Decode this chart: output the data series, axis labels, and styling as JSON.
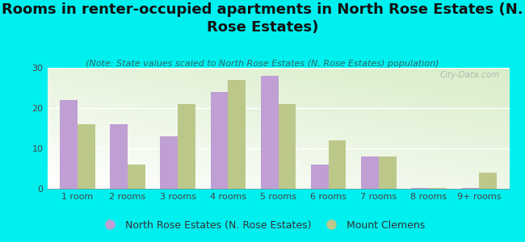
{
  "categories": [
    "1 room",
    "2 rooms",
    "3 rooms",
    "4 rooms",
    "5 rooms",
    "6 rooms",
    "7 rooms",
    "8 rooms",
    "9+ rooms"
  ],
  "north_rose": [
    22,
    16,
    13,
    24,
    28,
    6,
    8,
    0.2,
    0.2
  ],
  "mount_clemens": [
    16,
    6,
    21,
    27,
    21,
    12,
    8,
    0.2,
    4
  ],
  "north_rose_color": "#bf9fd4",
  "mount_clemens_color": "#bcc88a",
  "background_color": "#00f0f0",
  "title": "Rooms in renter-occupied apartments in North Rose Estates (N.\nRose Estates)",
  "subtitle": "(Note: State values scaled to North Rose Estates (N. Rose Estates) population)",
  "legend_label1": "North Rose Estates (N. Rose Estates)",
  "legend_label2": "Mount Clemens",
  "ylim": [
    0,
    30
  ],
  "yticks": [
    0,
    10,
    20,
    30
  ],
  "title_fontsize": 13,
  "subtitle_fontsize": 8,
  "tick_fontsize": 8,
  "legend_fontsize": 9
}
